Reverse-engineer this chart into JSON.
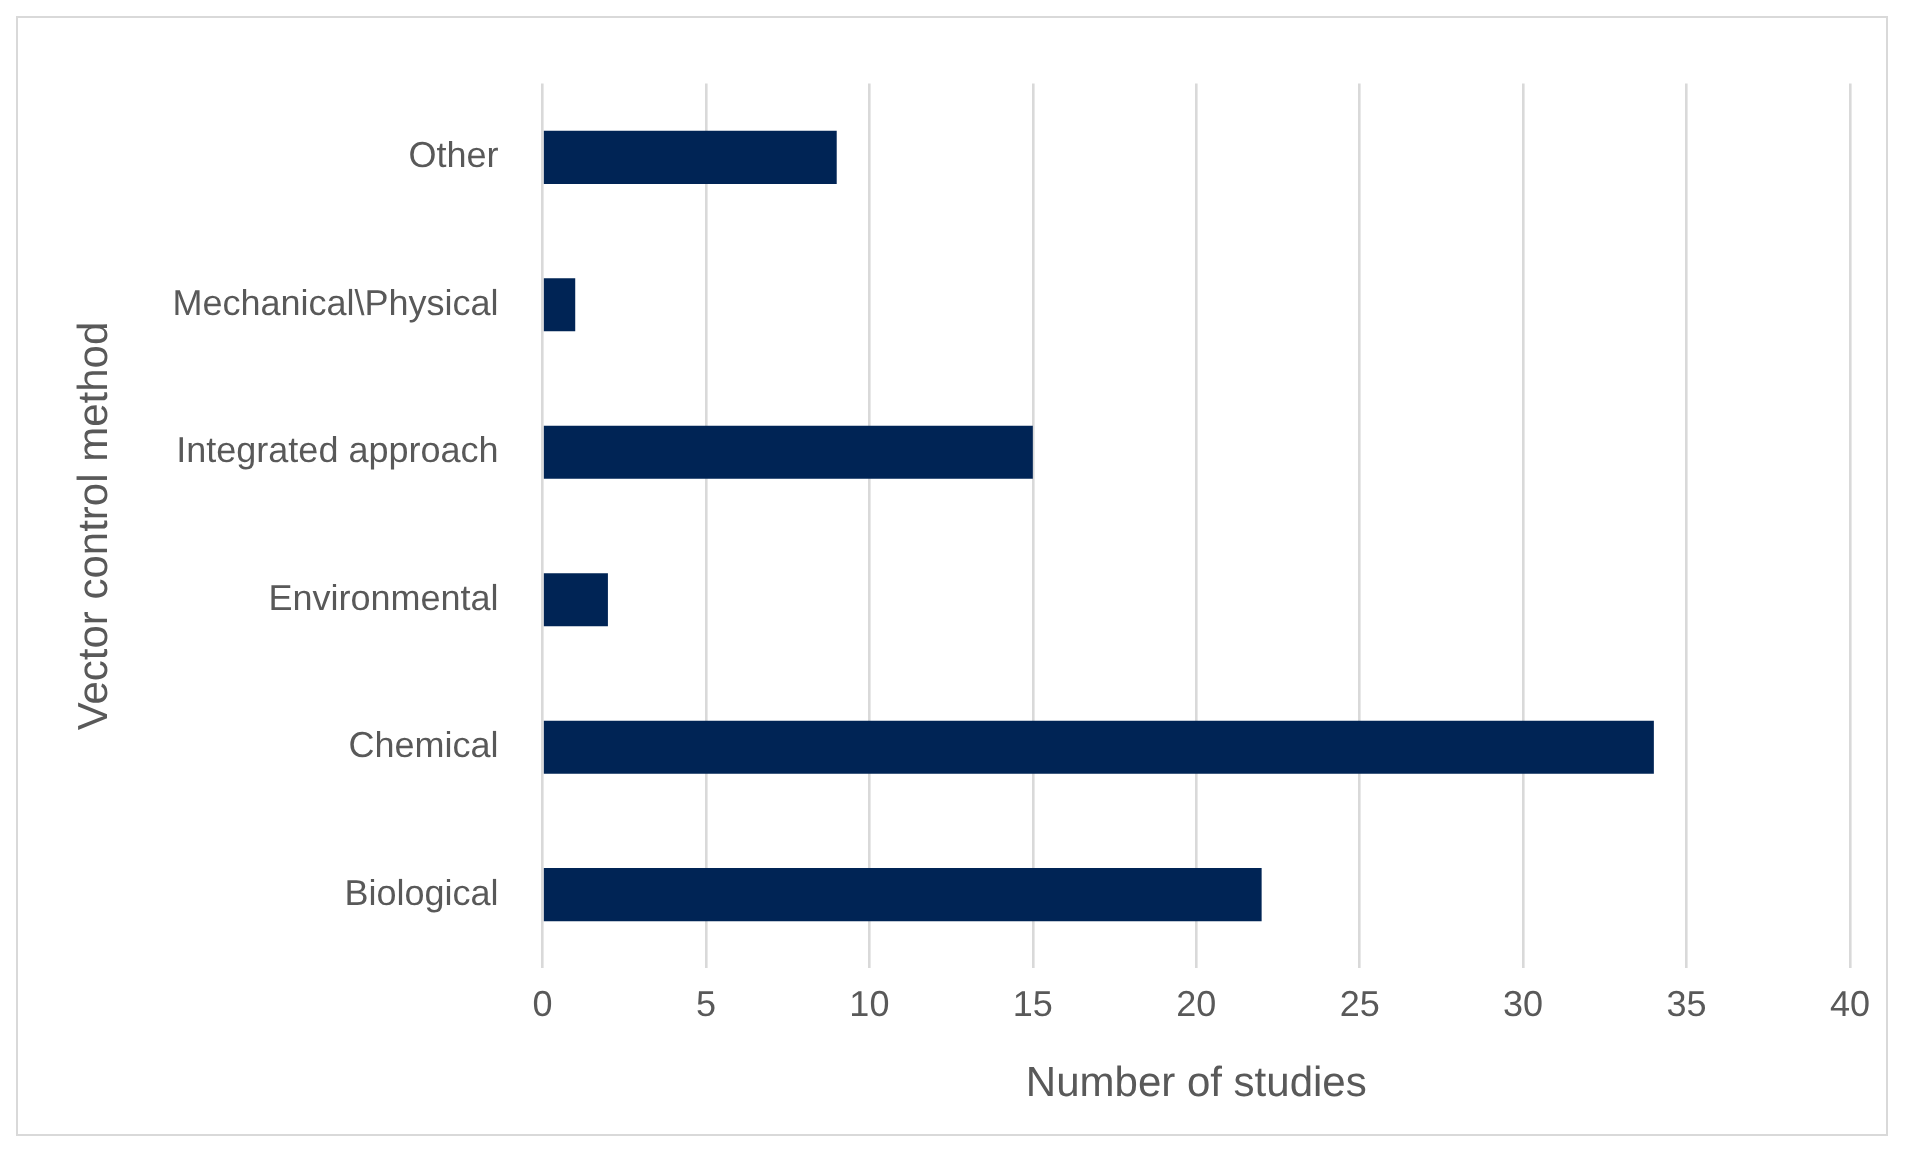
{
  "chart_data": {
    "type": "bar",
    "orientation": "horizontal",
    "xlabel": "Number of studies",
    "ylabel": "Vector control method",
    "categories": [
      "Other",
      "Mechanical\\Physical",
      "Integrated approach",
      "Environmental",
      "Chemical",
      "Biological"
    ],
    "values": [
      9,
      1,
      15,
      2,
      34,
      22
    ],
    "color": "#002455",
    "xlim": [
      0,
      40
    ],
    "xticks": [
      0,
      5,
      10,
      15,
      20,
      25,
      30,
      35,
      40
    ],
    "grid": "x",
    "legend": false
  }
}
